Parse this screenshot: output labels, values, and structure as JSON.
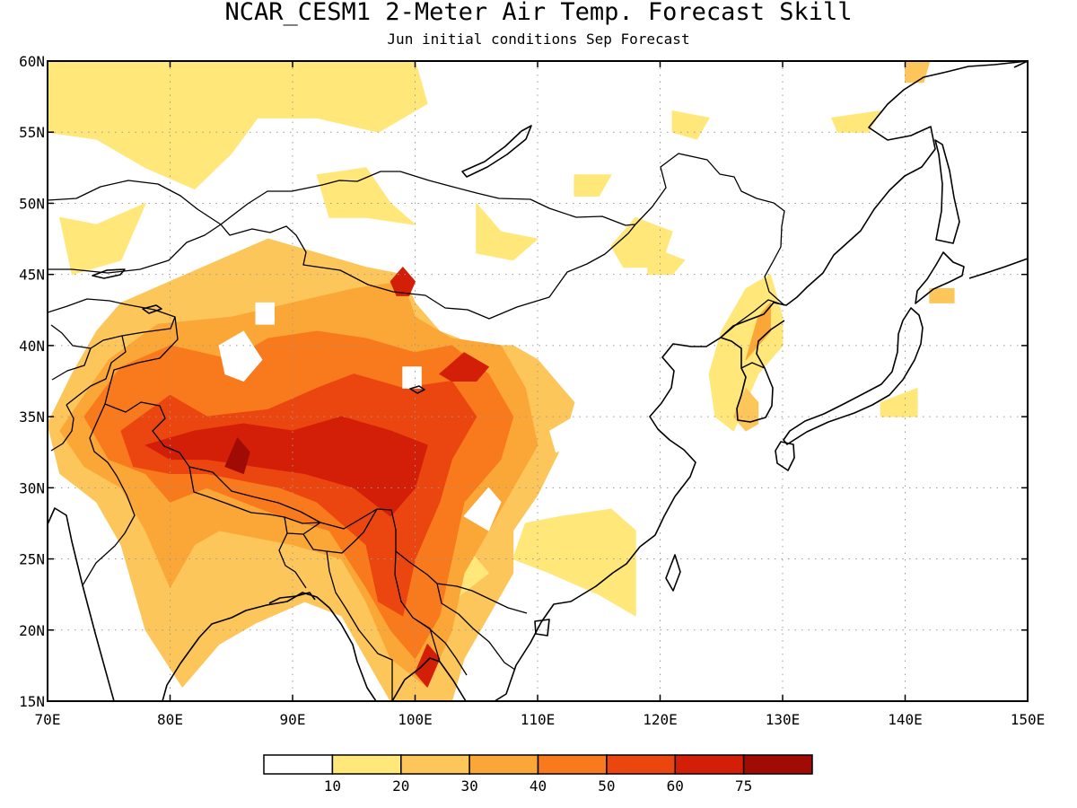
{
  "title": "NCAR_CESM1 2-Meter Air Temp. Forecast Skill",
  "subtitle": "Jun initial conditions  Sep Forecast",
  "map": {
    "lon_range": [
      70,
      150
    ],
    "lat_range": [
      15,
      60
    ],
    "lon_ticks": [
      {
        "value": 70,
        "label": "70E"
      },
      {
        "value": 80,
        "label": "80E"
      },
      {
        "value": 90,
        "label": "90E"
      },
      {
        "value": 100,
        "label": "100E"
      },
      {
        "value": 110,
        "label": "110E"
      },
      {
        "value": 120,
        "label": "120E"
      },
      {
        "value": 130,
        "label": "130E"
      },
      {
        "value": 140,
        "label": "140E"
      },
      {
        "value": 150,
        "label": "150E"
      }
    ],
    "lat_ticks": [
      {
        "value": 15,
        "label": "15N"
      },
      {
        "value": 20,
        "label": "20N"
      },
      {
        "value": 25,
        "label": "25N"
      },
      {
        "value": 30,
        "label": "30N"
      },
      {
        "value": 35,
        "label": "35N"
      },
      {
        "value": 40,
        "label": "40N"
      },
      {
        "value": 45,
        "label": "45N"
      },
      {
        "value": 50,
        "label": "50N"
      },
      {
        "value": 55,
        "label": "55N"
      },
      {
        "value": 60,
        "label": "60N"
      }
    ],
    "gridlines": true
  },
  "colorbar": {
    "labels": [
      "10",
      "20",
      "30",
      "40",
      "50",
      "60",
      "75"
    ],
    "colors": [
      "#ffffff",
      "#ffe77a",
      "#fdc65a",
      "#fba737",
      "#f97a1c",
      "#ec4610",
      "#d31f08",
      "#a00b06"
    ]
  },
  "chart_data": {
    "type": "heatmap",
    "title": "NCAR_CESM1 2-Meter Air Temp. Forecast Skill",
    "subtitle": "Jun initial conditions  Sep Forecast",
    "x_range": [
      70,
      150
    ],
    "y_range": [
      15,
      60
    ],
    "levels": [
      10,
      20,
      30,
      40,
      50,
      60,
      75
    ],
    "colors": [
      "#ffffff",
      "#ffe77a",
      "#fdc65a",
      "#fba737",
      "#f97a1c",
      "#ec4610",
      "#d31f08",
      "#a00b06"
    ],
    "regions": [
      {
        "level": 2,
        "points": [
          [
            70,
            34.5
          ],
          [
            72,
            38
          ],
          [
            74,
            41
          ],
          [
            76,
            43
          ],
          [
            80,
            44.5
          ],
          [
            84,
            46
          ],
          [
            88,
            47.5
          ],
          [
            92,
            46.5
          ],
          [
            96,
            45.5
          ],
          [
            99,
            45
          ],
          [
            100,
            43
          ],
          [
            102,
            41
          ],
          [
            105,
            40
          ],
          [
            108,
            40
          ],
          [
            110,
            39
          ],
          [
            113,
            36
          ],
          [
            112,
            33
          ],
          [
            110,
            29.5
          ],
          [
            108,
            27
          ],
          [
            108,
            24
          ],
          [
            106,
            21
          ],
          [
            104,
            18
          ],
          [
            103,
            15
          ],
          [
            98,
            15
          ],
          [
            96,
            18
          ],
          [
            94,
            21
          ],
          [
            91,
            22
          ],
          [
            87,
            20.5
          ],
          [
            84,
            19
          ],
          [
            81,
            16
          ],
          [
            78,
            20
          ],
          [
            76,
            26
          ],
          [
            74,
            29
          ],
          [
            71,
            31
          ]
        ]
      },
      {
        "level": 1,
        "points": [
          [
            70,
            55
          ],
          [
            74,
            54.5
          ],
          [
            78,
            52.5
          ],
          [
            82,
            51
          ],
          [
            85,
            53.5
          ],
          [
            88,
            57
          ],
          [
            90,
            60
          ],
          [
            70,
            60
          ]
        ]
      },
      {
        "level": 1,
        "points": [
          [
            71,
            49
          ],
          [
            74,
            48.5
          ],
          [
            78,
            50
          ],
          [
            76,
            46
          ],
          [
            72,
            45
          ]
        ]
      },
      {
        "level": 1,
        "points": [
          [
            78,
            59
          ],
          [
            84,
            60
          ],
          [
            100,
            60
          ],
          [
            101,
            57
          ],
          [
            97,
            55
          ],
          [
            92,
            56
          ],
          [
            86,
            56
          ],
          [
            82,
            57
          ]
        ]
      },
      {
        "level": 1,
        "points": [
          [
            92,
            52
          ],
          [
            96,
            52.5
          ],
          [
            98,
            50
          ],
          [
            100,
            48.5
          ],
          [
            96,
            49
          ],
          [
            93,
            49
          ]
        ]
      },
      {
        "level": 1,
        "points": [
          [
            105,
            50
          ],
          [
            107,
            48
          ],
          [
            110,
            47.5
          ],
          [
            108,
            46
          ],
          [
            105,
            46.5
          ]
        ]
      },
      {
        "level": 1,
        "points": [
          [
            118,
            49
          ],
          [
            121,
            48
          ],
          [
            120,
            45.5
          ],
          [
            117,
            45.5
          ],
          [
            116,
            47
          ]
        ]
      },
      {
        "level": 1,
        "points": [
          [
            119,
            47
          ],
          [
            122,
            46
          ],
          [
            121,
            45
          ],
          [
            119,
            45
          ]
        ]
      },
      {
        "level": 1,
        "points": [
          [
            125,
            41
          ],
          [
            127,
            44
          ],
          [
            129,
            45
          ],
          [
            130,
            42
          ],
          [
            130,
            40
          ],
          [
            128,
            38
          ],
          [
            127,
            36
          ],
          [
            126,
            34
          ],
          [
            124.5,
            35
          ],
          [
            124,
            38
          ]
        ]
      },
      {
        "level": 3,
        "points": [
          [
            127,
            39
          ],
          [
            128,
            42
          ],
          [
            129,
            43
          ],
          [
            129,
            41
          ],
          [
            128,
            40
          ]
        ]
      },
      {
        "level": 2,
        "points": [
          [
            126,
            35
          ],
          [
            127,
            37
          ],
          [
            128,
            36
          ],
          [
            128,
            34.5
          ],
          [
            127,
            34
          ]
        ]
      },
      {
        "level": 1,
        "points": [
          [
            118,
            21
          ],
          [
            115,
            22.5
          ],
          [
            111,
            24
          ],
          [
            108,
            25
          ],
          [
            109,
            27.5
          ],
          [
            112,
            28
          ],
          [
            116,
            28.5
          ],
          [
            118,
            27
          ]
        ]
      },
      {
        "level": 1,
        "points": [
          [
            100,
            25
          ],
          [
            104,
            26
          ],
          [
            106,
            24
          ],
          [
            103,
            22
          ],
          [
            100,
            22
          ]
        ]
      },
      {
        "level": 1,
        "points": [
          [
            138,
            36
          ],
          [
            141,
            37
          ],
          [
            141,
            35
          ],
          [
            138,
            35
          ]
        ]
      },
      {
        "level": 2,
        "points": [
          [
            142,
            44
          ],
          [
            144,
            44
          ],
          [
            144,
            43
          ],
          [
            142,
            43
          ]
        ]
      },
      {
        "level": 2,
        "points": [
          [
            140,
            60
          ],
          [
            142,
            60
          ],
          [
            141.5,
            58.5
          ],
          [
            140,
            58.5
          ]
        ]
      },
      {
        "level": 1,
        "points": [
          [
            134,
            56
          ],
          [
            138,
            56.5
          ],
          [
            137,
            55
          ],
          [
            134.5,
            55
          ]
        ]
      },
      {
        "level": 1,
        "points": [
          [
            121,
            56.5
          ],
          [
            124,
            56
          ],
          [
            123,
            54.5
          ],
          [
            121,
            55
          ]
        ]
      },
      {
        "level": 1,
        "points": [
          [
            113,
            52
          ],
          [
            116,
            52
          ],
          [
            115,
            50.5
          ],
          [
            113,
            50.5
          ]
        ]
      },
      {
        "level": 3,
        "points": [
          [
            71,
            34
          ],
          [
            75,
            39
          ],
          [
            79,
            41.5
          ],
          [
            85,
            42
          ],
          [
            90,
            43
          ],
          [
            95,
            44
          ],
          [
            99,
            44.5
          ],
          [
            100,
            42
          ],
          [
            103,
            40.5
          ],
          [
            107,
            40
          ],
          [
            109,
            37
          ],
          [
            110,
            33
          ],
          [
            108,
            30
          ],
          [
            106,
            27
          ],
          [
            104,
            24
          ],
          [
            103,
            20
          ],
          [
            101,
            16
          ],
          [
            98,
            18
          ],
          [
            96,
            22
          ],
          [
            94,
            25
          ],
          [
            90,
            26
          ],
          [
            87,
            26.5
          ],
          [
            84,
            27
          ],
          [
            82,
            26
          ],
          [
            80,
            23
          ],
          [
            78,
            27
          ],
          [
            76,
            30
          ],
          [
            73,
            31.5
          ]
        ]
      },
      {
        "level": 4,
        "points": [
          [
            73,
            35
          ],
          [
            76,
            38.5
          ],
          [
            80,
            40
          ],
          [
            85,
            39
          ],
          [
            88,
            40.5
          ],
          [
            92,
            41
          ],
          [
            96,
            40.5
          ],
          [
            100,
            39.5
          ],
          [
            103,
            40
          ],
          [
            106,
            38
          ],
          [
            108,
            35
          ],
          [
            107,
            32
          ],
          [
            104,
            29
          ],
          [
            103,
            25
          ],
          [
            102,
            21
          ],
          [
            100,
            18
          ],
          [
            98,
            20
          ],
          [
            96,
            23
          ],
          [
            93,
            27
          ],
          [
            89,
            28
          ],
          [
            86,
            29
          ],
          [
            83,
            30
          ],
          [
            80,
            29
          ],
          [
            78,
            31
          ],
          [
            75,
            32
          ]
        ]
      },
      {
        "level": 5,
        "points": [
          [
            76,
            34
          ],
          [
            80,
            36.5
          ],
          [
            83,
            35
          ],
          [
            88,
            35.5
          ],
          [
            92,
            37
          ],
          [
            95,
            38
          ],
          [
            99,
            37
          ],
          [
            103,
            37.5
          ],
          [
            105,
            35
          ],
          [
            103,
            32
          ],
          [
            102,
            29
          ],
          [
            100,
            25
          ],
          [
            99,
            21
          ],
          [
            97,
            22
          ],
          [
            96,
            26
          ],
          [
            92,
            29
          ],
          [
            89,
            30
          ],
          [
            86,
            30.5
          ],
          [
            83,
            31
          ],
          [
            80,
            31
          ],
          [
            77,
            31.5
          ]
        ]
      },
      {
        "level": 6,
        "points": [
          [
            78,
            33
          ],
          [
            82,
            34
          ],
          [
            86,
            34.5
          ],
          [
            90,
            34
          ],
          [
            94,
            35
          ],
          [
            98,
            34
          ],
          [
            101,
            33
          ],
          [
            100,
            30
          ],
          [
            98,
            28
          ],
          [
            95,
            30
          ],
          [
            91,
            31
          ],
          [
            87,
            31.5
          ],
          [
            83,
            32
          ],
          [
            80,
            32
          ]
        ]
      },
      {
        "level": 6,
        "points": [
          [
            98,
            44.5
          ],
          [
            99,
            45.5
          ],
          [
            100,
            44.5
          ],
          [
            99.5,
            43.5
          ],
          [
            98.5,
            43.5
          ]
        ]
      },
      {
        "level": 6,
        "points": [
          [
            102,
            38
          ],
          [
            104,
            39.5
          ],
          [
            106,
            38.5
          ],
          [
            105,
            37.5
          ],
          [
            103,
            37.5
          ]
        ]
      },
      {
        "level": 6,
        "points": [
          [
            100,
            17
          ],
          [
            101,
            19
          ],
          [
            102,
            18
          ],
          [
            101,
            16
          ]
        ]
      },
      {
        "level": 7,
        "points": [
          [
            84.5,
            31.5
          ],
          [
            85.5,
            33.5
          ],
          [
            86.5,
            32.5
          ],
          [
            86,
            31
          ]
        ]
      },
      {
        "level": 0,
        "points": [
          [
            84,
            40
          ],
          [
            86,
            41
          ],
          [
            87.5,
            39
          ],
          [
            86,
            37.5
          ],
          [
            84.5,
            38
          ]
        ]
      },
      {
        "level": 0,
        "points": [
          [
            99,
            38.5
          ],
          [
            100.5,
            38.5
          ],
          [
            100.5,
            37
          ],
          [
            99,
            37
          ]
        ]
      },
      {
        "level": 0,
        "points": [
          [
            87,
            43
          ],
          [
            88.5,
            43
          ],
          [
            88.5,
            41.5
          ],
          [
            87,
            41.5
          ]
        ]
      },
      {
        "level": 0,
        "points": [
          [
            111,
            34
          ],
          [
            113,
            35
          ],
          [
            113,
            33
          ],
          [
            111.5,
            32.5
          ]
        ]
      },
      {
        "level": 0,
        "points": [
          [
            104,
            28
          ],
          [
            106,
            30
          ],
          [
            107,
            29
          ],
          [
            106,
            27
          ]
        ]
      }
    ]
  }
}
